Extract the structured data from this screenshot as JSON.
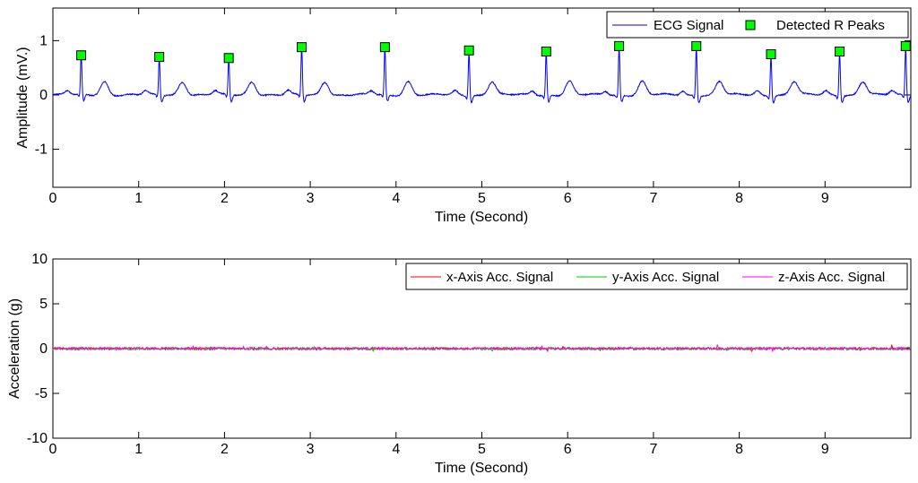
{
  "chart_data": [
    {
      "type": "line",
      "xlabel": "Time (Second)",
      "ylabel": "Amplitude (mV.)",
      "xlim": [
        0,
        10
      ],
      "ylim": [
        -1.7,
        1.6
      ],
      "xticks": [
        0,
        1,
        2,
        3,
        4,
        5,
        6,
        7,
        8,
        9
      ],
      "yticks": [
        -1,
        0,
        1
      ],
      "grid": false,
      "legend_position": "top-right",
      "baseline_mV": 0.0,
      "t_wave_mV": 0.25,
      "s_dip_mV": -0.12,
      "series": [
        {
          "name": "ECG Signal",
          "style": "line",
          "color": "#0000ff"
        },
        {
          "name": "Detected R Peaks",
          "style": "square-marker",
          "color": "#00ff00",
          "x": [
            0.33,
            1.24,
            2.05,
            2.9,
            3.87,
            4.85,
            5.75,
            6.6,
            7.5,
            8.37,
            9.17,
            9.94
          ],
          "y": [
            0.73,
            0.7,
            0.68,
            0.88,
            0.88,
            0.82,
            0.8,
            0.9,
            0.9,
            0.75,
            0.8,
            0.9
          ]
        }
      ]
    },
    {
      "type": "line",
      "xlabel": "Time (Second)",
      "ylabel": "Acceleration (g)",
      "xlim": [
        0,
        10
      ],
      "ylim": [
        -10,
        10
      ],
      "xticks": [
        0,
        1,
        2,
        3,
        4,
        5,
        6,
        7,
        8,
        9
      ],
      "yticks": [
        -10,
        -5,
        0,
        5,
        10
      ],
      "grid": false,
      "legend_position": "top-right",
      "series": [
        {
          "name": "x-Axis Acc. Signal",
          "color": "#ff0000",
          "mean": 0.0,
          "noise_amplitude": 0.2
        },
        {
          "name": "y-Axis Acc. Signal",
          "color": "#00cc00",
          "mean": 0.0,
          "noise_amplitude": 0.2
        },
        {
          "name": "z-Axis Acc. Signal",
          "color": "#ff00ff",
          "mean": 0.0,
          "noise_amplitude": 0.2
        }
      ]
    }
  ]
}
